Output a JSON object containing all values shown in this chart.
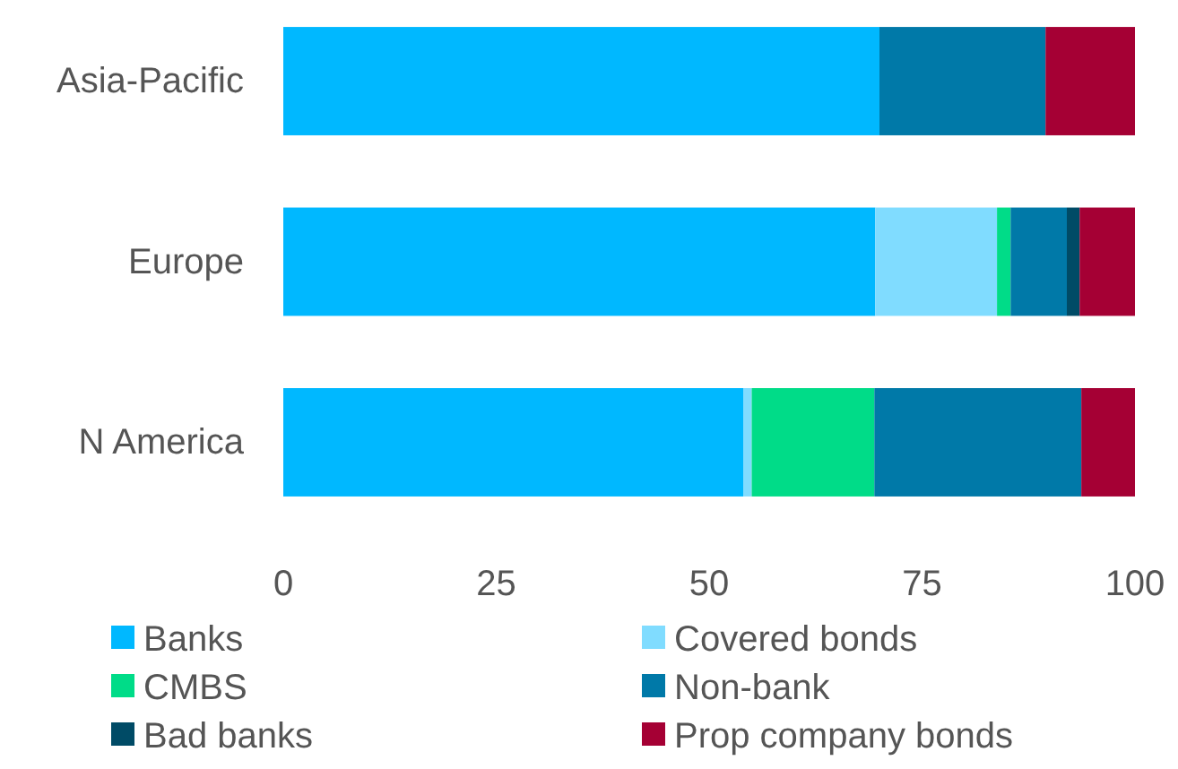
{
  "chart_data": {
    "type": "bar",
    "orientation": "horizontal",
    "stacked": true,
    "categories": [
      "Asia-Pacific",
      "Europe",
      "N America"
    ],
    "series": [
      {
        "name": "Banks",
        "color": "#00b8ff",
        "values": [
          70,
          69.5,
          54
        ]
      },
      {
        "name": "Covered bonds",
        "color": "#80dcff",
        "values": [
          0,
          14.3,
          1
        ]
      },
      {
        "name": "CMBS",
        "color": "#00dc88",
        "values": [
          0,
          1.6,
          14.4
        ]
      },
      {
        "name": "Non-bank",
        "color": "#0079a8",
        "values": [
          19.5,
          6.6,
          24.3
        ]
      },
      {
        "name": "Bad banks",
        "color": "#004b66",
        "values": [
          0,
          1.5,
          0
        ]
      },
      {
        "name": "Prop company bonds",
        "color": "#a50034",
        "values": [
          10.5,
          6.5,
          6.3
        ]
      }
    ],
    "xlim": [
      0,
      100
    ],
    "xticks": [
      0,
      25,
      50,
      75,
      100
    ],
    "grid": false,
    "legend": "bottom"
  }
}
